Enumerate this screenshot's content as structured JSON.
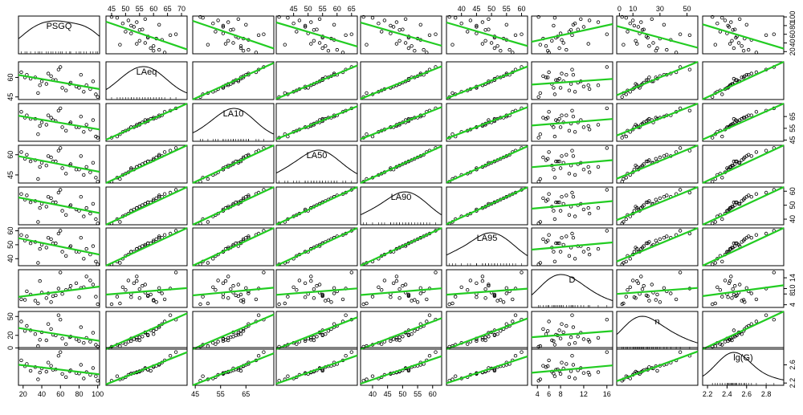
{
  "chart_data": {
    "type": "scatter",
    "subtype": "scatterplot-matrix",
    "variables": [
      "PSGQ",
      "LAeq",
      "LA10",
      "LA50",
      "LA90",
      "LA95",
      "D",
      "n",
      "lg(G)"
    ],
    "ranges": {
      "PSGQ": [
        15,
        102
      ],
      "LAeq": [
        43,
        72
      ],
      "LA10": [
        44,
        76
      ],
      "LA50": [
        39,
        67
      ],
      "LA90": [
        36,
        63
      ],
      "LA95": [
        35,
        62
      ],
      "D": [
        3,
        17
      ],
      "n": [
        -2,
        58
      ],
      "lg(G)": [
        2.15,
        2.98
      ]
    },
    "axis_ticks": {
      "top": [
        {
          "variable": "LAeq",
          "ticks": [
            "45",
            "50",
            "55",
            "60",
            "65",
            "70"
          ]
        },
        {
          "variable": "LA50",
          "ticks": [
            "45",
            "50",
            "55",
            "60",
            "65"
          ]
        },
        {
          "variable": "LA95",
          "ticks": [
            "40",
            "45",
            "50",
            "55",
            "60"
          ]
        },
        {
          "variable": "n",
          "ticks": [
            "0",
            "10",
            "30",
            "50"
          ]
        }
      ],
      "bottom": [
        {
          "variable": "PSGQ",
          "ticks": [
            "20",
            "40",
            "60",
            "80",
            "100"
          ]
        },
        {
          "variable": "LA10",
          "ticks": [
            "45",
            "55",
            "65"
          ]
        },
        {
          "variable": "LA90",
          "ticks": [
            "40",
            "45",
            "50",
            "55",
            "60"
          ]
        },
        {
          "variable": "D",
          "ticks": [
            "4",
            "6",
            "8",
            "12",
            "16"
          ]
        },
        {
          "variable": "lg(G)",
          "ticks": [
            "2.2",
            "2.4",
            "2.6",
            "2.8"
          ]
        }
      ],
      "left": [
        {
          "variable": "LAeq",
          "ticks": [
            "45",
            "60"
          ]
        },
        {
          "variable": "LA50",
          "ticks": [
            "45",
            "60"
          ]
        },
        {
          "variable": "LA95",
          "ticks": [
            "40",
            "50",
            "60"
          ]
        },
        {
          "variable": "n",
          "ticks": [
            "0",
            "20",
            "50"
          ]
        }
      ],
      "right": [
        {
          "variable": "PSGQ",
          "ticks": [
            "20",
            "40",
            "60",
            "80",
            "100"
          ]
        },
        {
          "variable": "LA10",
          "ticks": [
            "45",
            "55",
            "65"
          ]
        },
        {
          "variable": "LA90",
          "ticks": [
            "40",
            "50",
            "60"
          ]
        },
        {
          "variable": "D",
          "ticks": [
            "4",
            "8",
            "10",
            "14"
          ]
        },
        {
          "variable": "lg(G)",
          "ticks": [
            "2.2",
            "2.6"
          ]
        }
      ]
    },
    "observations": {
      "PSGQ": [
        98,
        24,
        45,
        62,
        85,
        33,
        71,
        55,
        92,
        18,
        40,
        77,
        66,
        50,
        28,
        88,
        58,
        36,
        80,
        95,
        47,
        70,
        22,
        60,
        100,
        52,
        38,
        82
      ],
      "LAeq": [
        47,
        62,
        55,
        52,
        49,
        60,
        56,
        58,
        51,
        64,
        57,
        53,
        50,
        61,
        59,
        54,
        66,
        48,
        52,
        57,
        63,
        55,
        60,
        68,
        45,
        58,
        54,
        62
      ],
      "LA10": [
        48,
        66,
        58,
        56,
        52,
        63,
        60,
        61,
        54,
        69,
        60,
        56,
        53,
        64,
        63,
        58,
        70,
        50,
        56,
        62,
        66,
        59,
        64,
        72,
        47,
        62,
        57,
        65
      ],
      "LA50": [
        43,
        60,
        52,
        50,
        45,
        56,
        53,
        55,
        47,
        62,
        54,
        49,
        46,
        58,
        55,
        51,
        63,
        42,
        49,
        54,
        59,
        52,
        57,
        65,
        40,
        55,
        51,
        59
      ],
      "LA90": [
        40,
        57,
        49,
        46,
        42,
        53,
        50,
        52,
        44,
        58,
        51,
        47,
        43,
        55,
        52,
        48,
        59,
        38,
        46,
        51,
        56,
        49,
        54,
        61,
        37,
        52,
        48,
        56
      ],
      "LA95": [
        38,
        56,
        48,
        45,
        40,
        52,
        49,
        51,
        43,
        57,
        50,
        45,
        42,
        54,
        51,
        47,
        58,
        37,
        45,
        49,
        55,
        48,
        53,
        60,
        36,
        51,
        47,
        55
      ],
      "D": [
        7.0,
        9.0,
        6.5,
        8.0,
        10.5,
        5.5,
        11.0,
        7.5,
        13.0,
        6.0,
        8.5,
        12.0,
        9.5,
        5.0,
        7.8,
        14.5,
        10.0,
        4.5,
        6.8,
        11.5,
        8.2,
        9.8,
        5.8,
        16.0,
        4.2,
        7.2,
        12.8,
        10.2
      ],
      "n": [
        5,
        35,
        12,
        15,
        8,
        22,
        18,
        20,
        10,
        42,
        25,
        14,
        6,
        30,
        28,
        16,
        52,
        3,
        11,
        24,
        38,
        17,
        27,
        45,
        2,
        21,
        13,
        33
      ],
      "lg(G)": [
        2.35,
        2.62,
        2.45,
        2.4,
        2.3,
        2.55,
        2.48,
        2.5,
        2.38,
        2.7,
        2.52,
        2.42,
        2.33,
        2.58,
        2.47,
        2.44,
        2.8,
        2.28,
        2.41,
        2.53,
        2.65,
        2.46,
        2.57,
        2.88,
        2.25,
        2.49,
        2.43,
        2.6
      ]
    },
    "regression_line_color": "#22cc22",
    "point_color": "#000000",
    "diagonal": "density",
    "grid": false
  }
}
